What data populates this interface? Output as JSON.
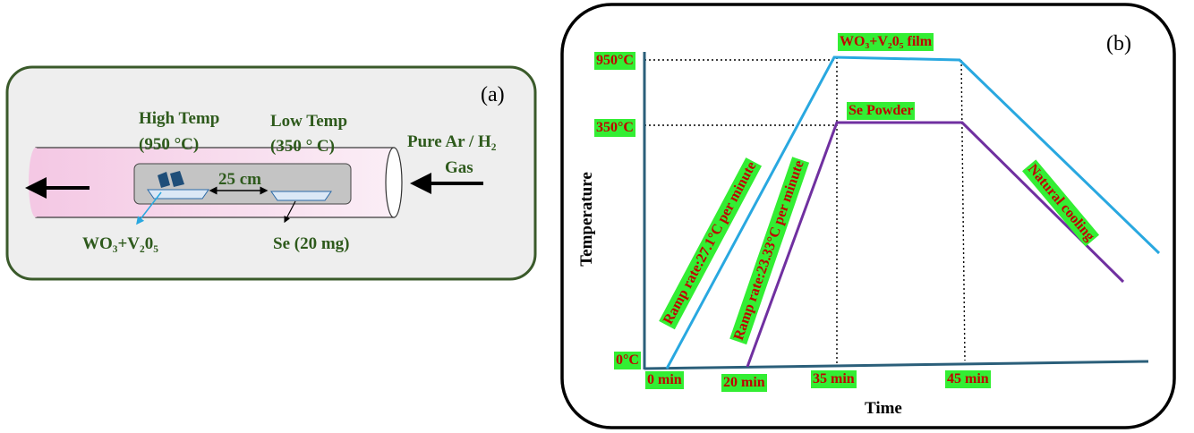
{
  "panel_a": {
    "label": "(a)",
    "high_temp": "High Temp",
    "high_temp_value": "(950 °C)",
    "low_temp": "Low Temp",
    "low_temp_value": "(350 ° C)",
    "gas_line1": "Pure Ar / H₂",
    "gas_line2": "Gas",
    "distance": "25 cm",
    "precursor": "WO₃+V₂0₅",
    "selenium": "Se (20 mg)"
  },
  "panel_b": {
    "label": "(b)",
    "y_title": "Temperature",
    "x_title": "Time",
    "y_labels": [
      "950°C",
      "350°C",
      "0°C"
    ],
    "x_labels": [
      "0 min",
      "20 min",
      "35 min",
      "45 min"
    ],
    "film_label": "WO₃+V₂0₅ film",
    "powder_label": "Se Powder",
    "ramp_film": "Ramp rate:27.1°C per minute",
    "ramp_powder": "Ramp rate:23.33°C per minute",
    "cooling": "Natural cooling"
  }
}
